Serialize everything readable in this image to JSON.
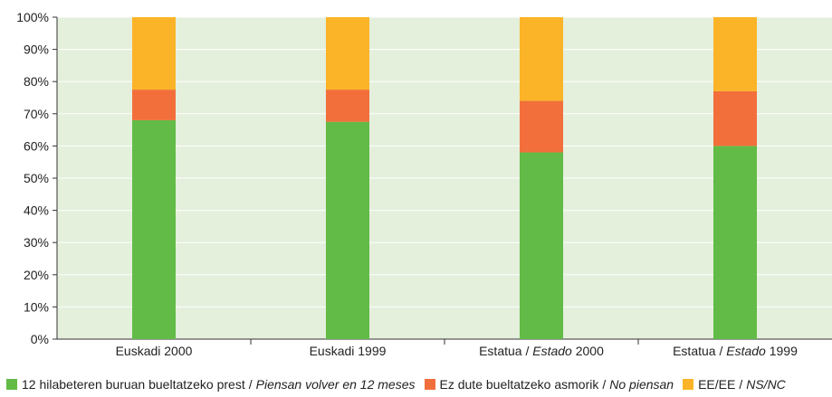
{
  "chart_data": {
    "type": "bar",
    "stacked": true,
    "categories": [
      {
        "text": "Euskadi 2000",
        "italic": "",
        "suffix": ""
      },
      {
        "text": "Euskadi 1999",
        "italic": "",
        "suffix": ""
      },
      {
        "text": "Estatua / ",
        "italic": "Estado",
        "suffix": " 2000"
      },
      {
        "text": "Estatua / ",
        "italic": "Estado",
        "suffix": " 1999"
      }
    ],
    "series": [
      {
        "name": "12 hilabeteren buruan bueltatzeko prest / Piensan volver en 12 meses",
        "color": "#62bb46",
        "values": [
          68,
          67.5,
          58,
          60
        ]
      },
      {
        "name": "Ez dute bueltatzeko asmorik / No piensan",
        "color": "#f26f3b",
        "values": [
          9.5,
          10,
          16,
          17
        ]
      },
      {
        "name": "EE/EE / NS/NC",
        "color": "#fbb427",
        "values": [
          22.5,
          22.5,
          26,
          23
        ]
      }
    ],
    "ylim": [
      0,
      100
    ],
    "yticks": [
      "0%",
      "10%",
      "20%",
      "30%",
      "40%",
      "50%",
      "60%",
      "70%",
      "80%",
      "90%",
      "100%"
    ],
    "plot_background": "#e4efdc",
    "grid": true,
    "legend_position": "bottom"
  },
  "legend": [
    {
      "main": "12 hilabeteren buruan bueltatzeko prest",
      "sep": "/",
      "italic": "Piensan volver en 12 meses",
      "color": "#62bb46"
    },
    {
      "main": "Ez dute bueltatzeko asmorik",
      "sep": "/",
      "italic": "No piensan",
      "color": "#f26f3b"
    },
    {
      "main": "EE/EE",
      "sep": "/",
      "italic": "NS/NC",
      "color": "#fbb427"
    }
  ]
}
